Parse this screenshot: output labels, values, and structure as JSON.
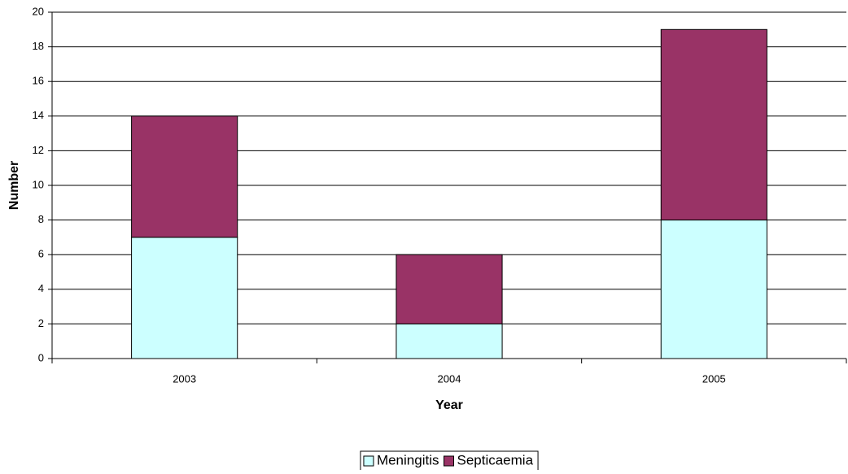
{
  "chart_data": {
    "type": "stacked_bar",
    "x_label": "Year",
    "y_label": "Number",
    "categories": [
      "2003",
      "2004",
      "2005"
    ],
    "series": [
      {
        "name": "Meningitis",
        "color": "#ccffff",
        "values": [
          7,
          2,
          8
        ]
      },
      {
        "name": "Septicaemia",
        "color": "#993366",
        "values": [
          7,
          4,
          11
        ]
      }
    ],
    "ylim": [
      0,
      20
    ],
    "yticks": [
      0,
      2,
      4,
      6,
      8,
      10,
      12,
      14,
      16,
      18,
      20
    ],
    "grid": true,
    "legend": "bottom"
  }
}
